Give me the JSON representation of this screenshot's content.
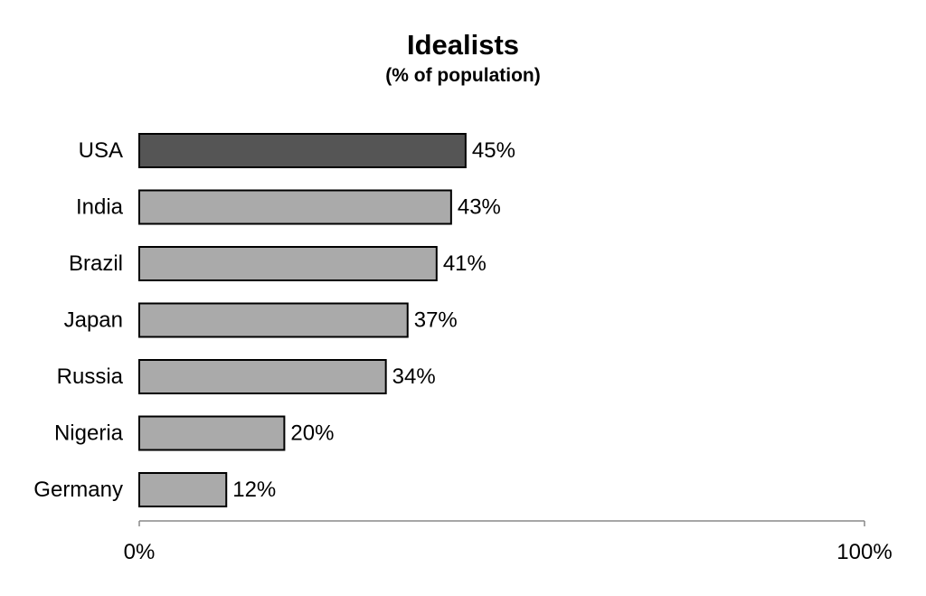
{
  "chart_data": {
    "type": "bar",
    "orientation": "horizontal",
    "title": "Idealists",
    "subtitle": "(% of population)",
    "categories": [
      "USA",
      "India",
      "Brazil",
      "Japan",
      "Russia",
      "Nigeria",
      "Germany"
    ],
    "values": [
      45,
      43,
      41,
      37,
      34,
      20,
      12
    ],
    "value_labels": [
      "45%",
      "43%",
      "41%",
      "37%",
      "34%",
      "20%",
      "12%"
    ],
    "highlight": "USA",
    "colors": {
      "highlight": "#555555",
      "default": "#aaaaaa",
      "stroke": "#000000",
      "axis": "#888888"
    },
    "xlim": [
      0,
      100
    ],
    "x_ticks": [
      {
        "value": 0,
        "label": "0%"
      },
      {
        "value": 100,
        "label": "100%"
      }
    ],
    "grid": false,
    "legend": "none"
  }
}
